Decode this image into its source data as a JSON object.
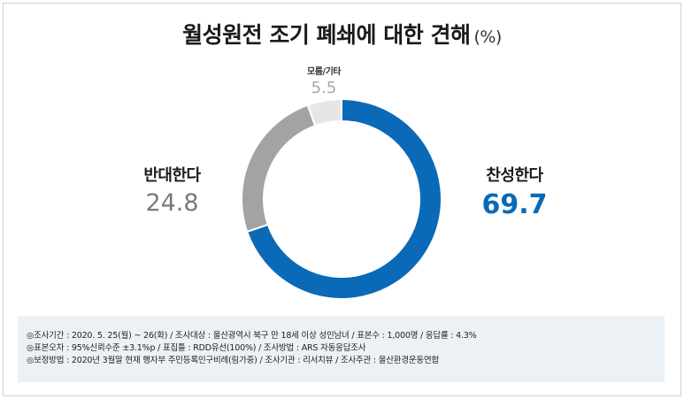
{
  "title": "월성원전 조기 폐쇄에 대한 견해",
  "title_unit": "(%)",
  "colors": {
    "approve": "#0a6ab7",
    "oppose": "#a3a3a3",
    "unknown": "#e6e6e6",
    "approve_text": "#0a6ab7",
    "oppose_text": "#7a7a7a",
    "unknown_text": "#a8a8a8"
  },
  "chart_data": {
    "type": "pie",
    "style": "donut",
    "categories": [
      "찬성한다",
      "반대한다",
      "모름/기타"
    ],
    "values": [
      69.7,
      24.8,
      5.5
    ],
    "value_labels": [
      "69.7",
      "24.8",
      "5.5"
    ],
    "title": "월성원전 조기 폐쇄에 대한 견해",
    "unit": "(%)",
    "start": "12 o'clock",
    "direction": "clockwise"
  },
  "footnotes": [
    "◎조사기간 : 2020. 5. 25(월) ~ 26(화) / 조사대상 : 울산광역시 북구 만 18세 이상 성인남녀 / 표본수 : 1,000명 / 응답률 : 4.3%",
    "◎표본오차 : 95%신뢰수준 ±3.1%p / 표집틀 : RDD유선(100%) / 조사방법 : ARS 자동응답조사",
    "◎보정방법 : 2020년 3월말 현재 행자부 주민등록인구비례(림가중) / 조사기관 : 리서치뷰 / 조사주관 : 울산환경운동연합"
  ]
}
